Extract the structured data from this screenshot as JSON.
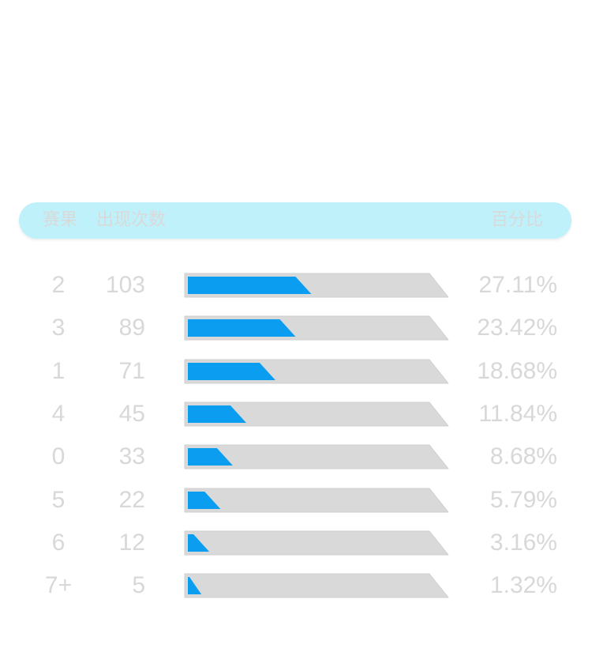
{
  "header": {
    "result_label": "赛果",
    "count_label": "出现次数",
    "percent_label": "百分比"
  },
  "colors": {
    "header_bg": "#bff1fb",
    "bar_fill": "#0a9df0",
    "bar_track": "#d9d9d9",
    "text": "#d8d8d8"
  },
  "chart_data": {
    "type": "bar",
    "orientation": "horizontal",
    "categories": [
      "2",
      "3",
      "1",
      "4",
      "0",
      "5",
      "6",
      "7+"
    ],
    "counts": [
      "103",
      "89",
      "71",
      "45",
      "33",
      "22",
      "12",
      "5"
    ],
    "percentages": [
      "27.11%",
      "23.42%",
      "18.68%",
      "11.84%",
      "8.68%",
      "5.79%",
      "3.16%",
      "1.32%"
    ],
    "values": [
      27.11,
      23.42,
      18.68,
      11.84,
      8.68,
      5.79,
      3.16,
      1.32
    ],
    "xlim": [
      0,
      100
    ]
  }
}
